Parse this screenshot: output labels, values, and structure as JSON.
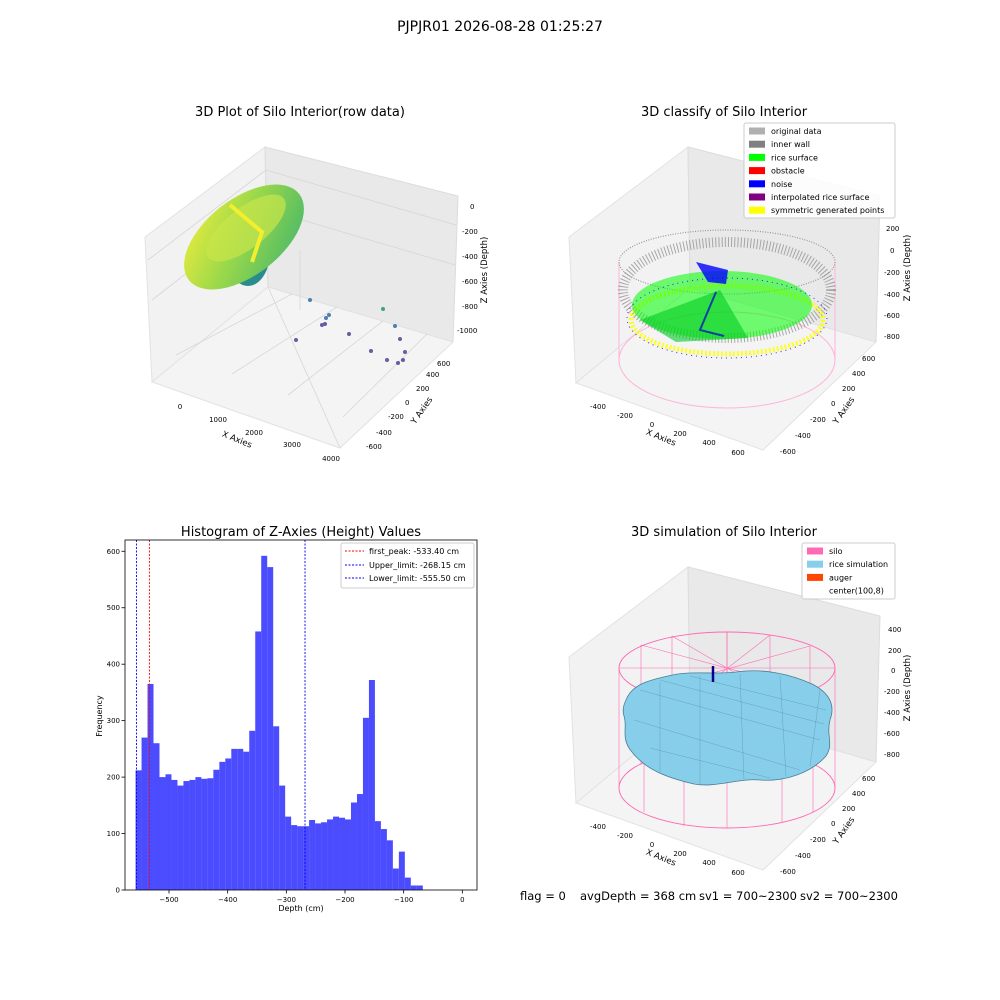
{
  "figure": {
    "suptitle": "PJPJR01 2026-08-28 01:25:27",
    "footer": {
      "flag": "flag = 0",
      "avg_depth": "avgDepth = 368 cm",
      "sv1": "sv1 = 700~2300",
      "sv2": "sv2 = 700~2300"
    }
  },
  "panels": {
    "raw": {
      "title": "3D Plot of Silo Interior(row data)",
      "xlabel": "X Axies",
      "ylabel": "Y Axies",
      "zlabel": "Z Axies (Depth)",
      "xticks": [
        "0",
        "1000",
        "2000",
        "3000",
        "4000"
      ],
      "yticks": [
        "-600",
        "-400",
        "-200",
        "0",
        "200",
        "400",
        "600"
      ],
      "zticks": [
        "0",
        "-200",
        "-400",
        "-600",
        "-800",
        "-1000"
      ]
    },
    "classify": {
      "title": "3D classify of Silo Interior",
      "xlabel": "X Axies",
      "ylabel": "Y Axies",
      "zlabel": "Z Axies (Depth)",
      "xticks": [
        "-400",
        "-200",
        "0",
        "200",
        "400",
        "600"
      ],
      "yticks": [
        "-600",
        "-400",
        "-200",
        "0",
        "200",
        "400",
        "600"
      ],
      "zticks": [
        "200",
        "0",
        "-200",
        "-400",
        "-600",
        "-800"
      ],
      "legend": [
        {
          "label": "original data",
          "color": "#b0b0b0"
        },
        {
          "label": "inner wall",
          "color": "#808080"
        },
        {
          "label": "rice surface",
          "color": "#00ff00"
        },
        {
          "label": "obstacle",
          "color": "#ff0000"
        },
        {
          "label": "noise",
          "color": "#0000ff"
        },
        {
          "label": "interpolated rice surface",
          "color": "#800080"
        },
        {
          "label": "symmetric generated points",
          "color": "#ffff00"
        }
      ]
    },
    "simulation": {
      "title": "3D simulation of Silo Interior",
      "xlabel": "X Axies",
      "ylabel": "Y Axies",
      "zlabel": "Z Axies (Depth)",
      "xticks": [
        "-400",
        "-200",
        "0",
        "200",
        "400",
        "600"
      ],
      "yticks": [
        "-600",
        "-400",
        "-200",
        "0",
        "200",
        "400",
        "600"
      ],
      "zticks": [
        "400",
        "200",
        "0",
        "-200",
        "-400",
        "-600",
        "-800"
      ],
      "legend": [
        {
          "label": "silo",
          "color": "#ff69b4"
        },
        {
          "label": "rice simulation",
          "color": "#87ceeb"
        },
        {
          "label": "auger",
          "color": "#ff4500"
        },
        {
          "label": "center(100,8)",
          "color": "#ffffff"
        }
      ]
    }
  },
  "chart_data": {
    "type": "bar",
    "title": "Histogram of Z-Axies (Height) Values",
    "xlabel": "Depth (cm)",
    "ylabel": "Frequency",
    "xlim": [
      -575,
      25
    ],
    "ylim": [
      0,
      620
    ],
    "xticks": [
      -500,
      -400,
      -300,
      -200,
      -100,
      0
    ],
    "yticks": [
      0,
      100,
      200,
      300,
      400,
      500,
      600
    ],
    "bin_start": -557,
    "bin_width": 10.2,
    "values": [
      212,
      270,
      365,
      260,
      200,
      205,
      195,
      185,
      193,
      195,
      200,
      197,
      198,
      213,
      227,
      233,
      250,
      250,
      245,
      282,
      458,
      592,
      572,
      290,
      185,
      130,
      115,
      113,
      113,
      124,
      118,
      120,
      125,
      130,
      128,
      125,
      155,
      170,
      305,
      372,
      122,
      108,
      88,
      38,
      68,
      22,
      8,
      8,
      0
    ],
    "bar_color": "#0000ff",
    "lines": [
      {
        "label": "first_peak: -533.40 cm",
        "x": -533.4,
        "color": "#ff0000"
      },
      {
        "label": "Upper_limit: -268.15 cm",
        "x": -268.15,
        "color": "#0000ff"
      },
      {
        "label": "Lower_limit: -555.50 cm",
        "x": -555.5,
        "color": "#0000ff"
      }
    ],
    "legend_position": "upper right",
    "grid": false
  }
}
